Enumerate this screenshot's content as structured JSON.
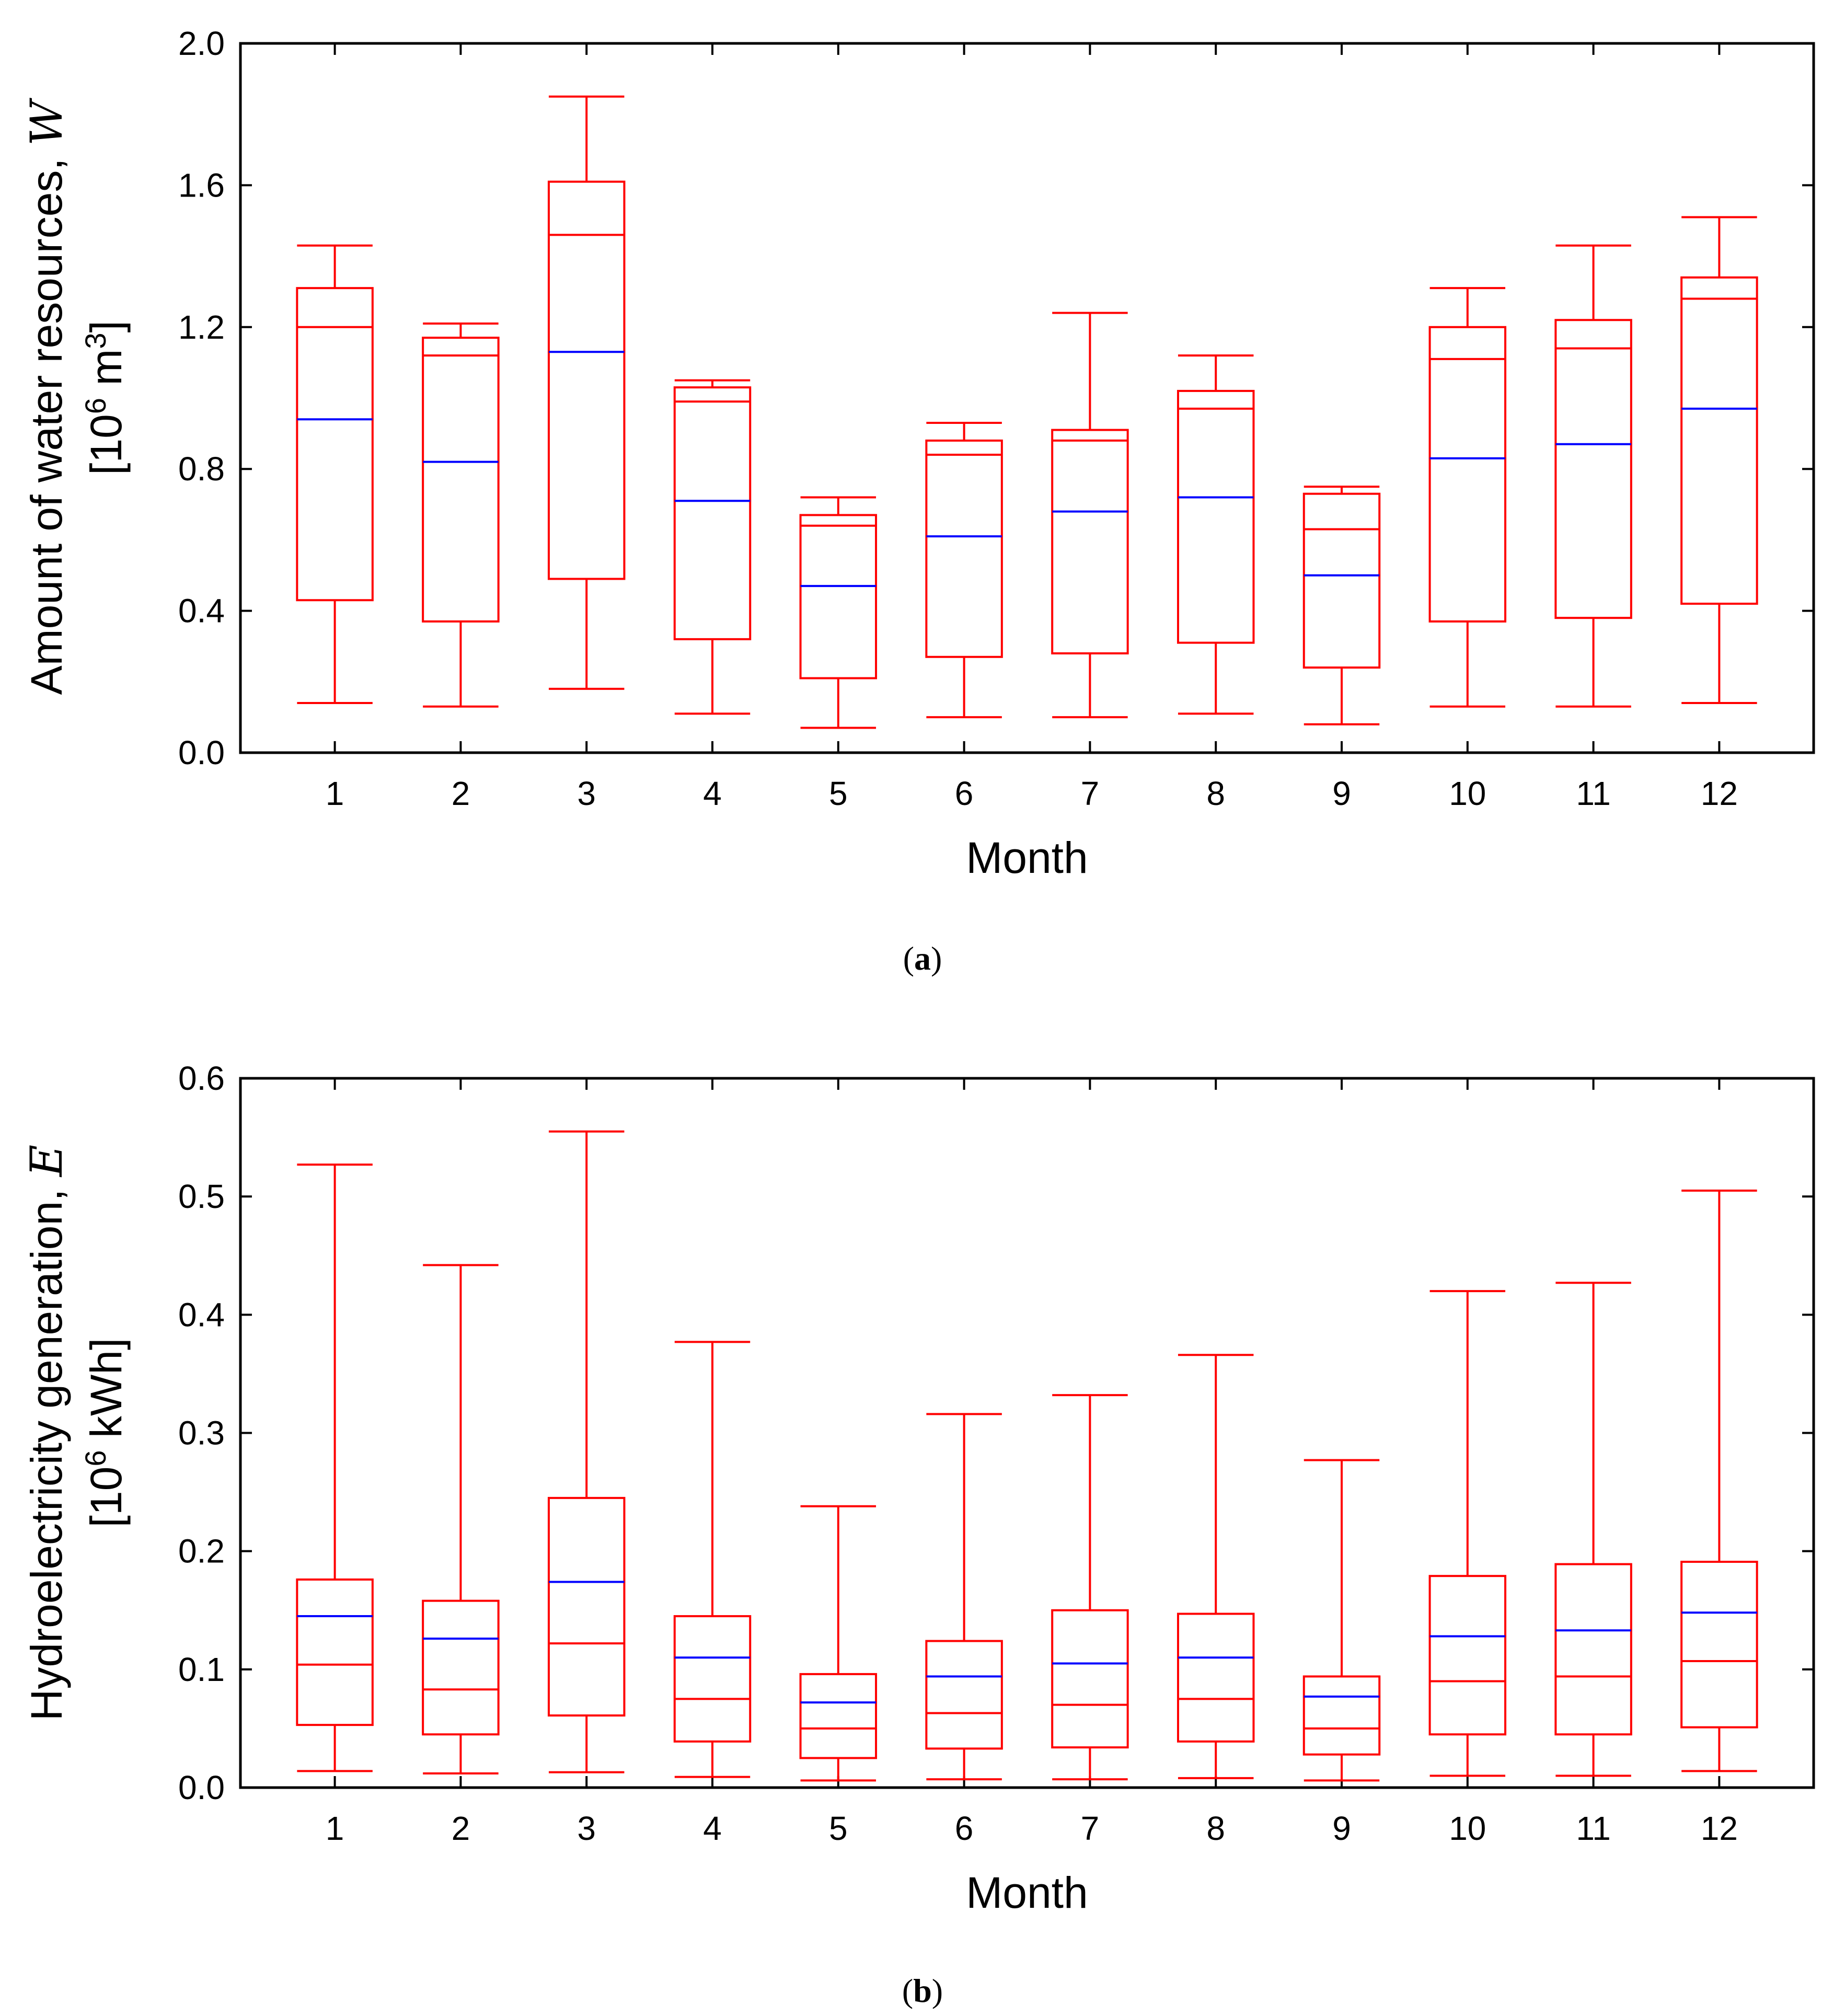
{
  "chart_data": [
    {
      "type": "box",
      "caption": "(a)",
      "caption_letter": "a",
      "xlabel": "Month",
      "ylabel_line1_text": "Amount of water resources, ",
      "ylabel_line1_symbol": "W",
      "ylabel_line2_parts": [
        "[10",
        "6",
        " m",
        "3",
        "]"
      ],
      "categories": [
        "1",
        "2",
        "3",
        "4",
        "5",
        "6",
        "7",
        "8",
        "9",
        "10",
        "11",
        "12"
      ],
      "yticks": [
        "0.0",
        "0.4",
        "0.8",
        "1.2",
        "1.6",
        "2.0"
      ],
      "ylim": [
        0,
        2.0
      ],
      "colors": {
        "box": "#ff0000",
        "mean_line": "#0000ff"
      },
      "series": [
        {
          "category": "1",
          "whisker_low": 0.14,
          "q1": 0.43,
          "median": 1.2,
          "q3": 1.31,
          "whisker_high": 1.43,
          "mean": 0.94
        },
        {
          "category": "2",
          "whisker_low": 0.13,
          "q1": 0.37,
          "median": 1.12,
          "q3": 1.17,
          "whisker_high": 1.21,
          "mean": 0.82
        },
        {
          "category": "3",
          "whisker_low": 0.18,
          "q1": 0.49,
          "median": 1.46,
          "q3": 1.61,
          "whisker_high": 1.85,
          "mean": 1.13
        },
        {
          "category": "4",
          "whisker_low": 0.11,
          "q1": 0.32,
          "median": 0.99,
          "q3": 1.03,
          "whisker_high": 1.05,
          "mean": 0.71
        },
        {
          "category": "5",
          "whisker_low": 0.07,
          "q1": 0.21,
          "median": 0.64,
          "q3": 0.67,
          "whisker_high": 0.72,
          "mean": 0.47
        },
        {
          "category": "6",
          "whisker_low": 0.1,
          "q1": 0.27,
          "median": 0.84,
          "q3": 0.88,
          "whisker_high": 0.93,
          "mean": 0.61
        },
        {
          "category": "7",
          "whisker_low": 0.1,
          "q1": 0.28,
          "median": 0.88,
          "q3": 0.91,
          "whisker_high": 1.24,
          "mean": 0.68
        },
        {
          "category": "8",
          "whisker_low": 0.11,
          "q1": 0.31,
          "median": 0.97,
          "q3": 1.02,
          "whisker_high": 1.12,
          "mean": 0.72
        },
        {
          "category": "9",
          "whisker_low": 0.08,
          "q1": 0.24,
          "median": 0.63,
          "q3": 0.73,
          "whisker_high": 0.75,
          "mean": 0.5
        },
        {
          "category": "10",
          "whisker_low": 0.13,
          "q1": 0.37,
          "median": 1.11,
          "q3": 1.2,
          "whisker_high": 1.31,
          "mean": 0.83
        },
        {
          "category": "11",
          "whisker_low": 0.13,
          "q1": 0.38,
          "median": 1.14,
          "q3": 1.22,
          "whisker_high": 1.43,
          "mean": 0.87
        },
        {
          "category": "12",
          "whisker_low": 0.14,
          "q1": 0.42,
          "median": 1.28,
          "q3": 1.34,
          "whisker_high": 1.51,
          "mean": 0.97
        }
      ]
    },
    {
      "type": "box",
      "caption": "(b)",
      "caption_letter": "b",
      "xlabel": "Month",
      "ylabel_line1_text": "Hydroelectricity generation, ",
      "ylabel_line1_symbol": "E",
      "ylabel_line2_parts": [
        "[10",
        "6",
        " kWh]",
        "",
        ""
      ],
      "categories": [
        "1",
        "2",
        "3",
        "4",
        "5",
        "6",
        "7",
        "8",
        "9",
        "10",
        "11",
        "12"
      ],
      "yticks": [
        "0.0",
        "0.1",
        "0.2",
        "0.3",
        "0.4",
        "0.5",
        "0.6"
      ],
      "ylim": [
        0,
        0.6
      ],
      "colors": {
        "box": "#ff0000",
        "mean_line": "#0000ff"
      },
      "series": [
        {
          "category": "1",
          "whisker_low": 0.014,
          "q1": 0.053,
          "median": 0.104,
          "q3": 0.176,
          "whisker_high": 0.527,
          "mean": 0.145
        },
        {
          "category": "2",
          "whisker_low": 0.012,
          "q1": 0.045,
          "median": 0.083,
          "q3": 0.158,
          "whisker_high": 0.442,
          "mean": 0.126
        },
        {
          "category": "3",
          "whisker_low": 0.013,
          "q1": 0.061,
          "median": 0.122,
          "q3": 0.245,
          "whisker_high": 0.555,
          "mean": 0.174
        },
        {
          "category": "4",
          "whisker_low": 0.009,
          "q1": 0.039,
          "median": 0.075,
          "q3": 0.145,
          "whisker_high": 0.377,
          "mean": 0.11
        },
        {
          "category": "5",
          "whisker_low": 0.006,
          "q1": 0.025,
          "median": 0.05,
          "q3": 0.096,
          "whisker_high": 0.238,
          "mean": 0.072
        },
        {
          "category": "6",
          "whisker_low": 0.007,
          "q1": 0.033,
          "median": 0.063,
          "q3": 0.124,
          "whisker_high": 0.316,
          "mean": 0.094
        },
        {
          "category": "7",
          "whisker_low": 0.007,
          "q1": 0.034,
          "median": 0.07,
          "q3": 0.15,
          "whisker_high": 0.332,
          "mean": 0.105
        },
        {
          "category": "8",
          "whisker_low": 0.008,
          "q1": 0.039,
          "median": 0.075,
          "q3": 0.147,
          "whisker_high": 0.366,
          "mean": 0.11
        },
        {
          "category": "9",
          "whisker_low": 0.006,
          "q1": 0.028,
          "median": 0.05,
          "q3": 0.094,
          "whisker_high": 0.277,
          "mean": 0.077
        },
        {
          "category": "10",
          "whisker_low": 0.01,
          "q1": 0.045,
          "median": 0.09,
          "q3": 0.179,
          "whisker_high": 0.42,
          "mean": 0.128
        },
        {
          "category": "11",
          "whisker_low": 0.01,
          "q1": 0.045,
          "median": 0.094,
          "q3": 0.189,
          "whisker_high": 0.427,
          "mean": 0.133
        },
        {
          "category": "12",
          "whisker_low": 0.014,
          "q1": 0.051,
          "median": 0.107,
          "q3": 0.191,
          "whisker_high": 0.505,
          "mean": 0.148
        }
      ]
    }
  ]
}
